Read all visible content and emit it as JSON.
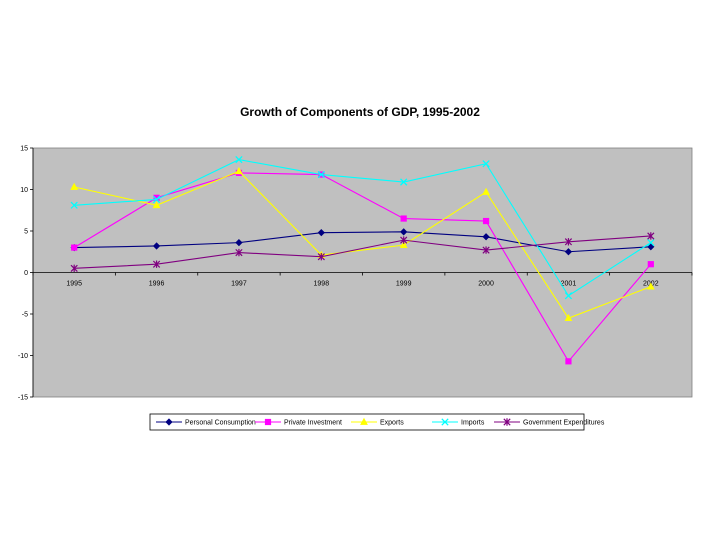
{
  "chart_data": {
    "type": "line",
    "title": "Growth of Components of GDP, 1995-2002",
    "xlabel": "",
    "ylabel": "",
    "categories": [
      "1995",
      "1996",
      "1997",
      "1998",
      "1999",
      "2000",
      "2001",
      "2002"
    ],
    "ylim": [
      -15,
      15
    ],
    "yticks": [
      15,
      10,
      5,
      0,
      -5,
      -10,
      -15
    ],
    "grid": false,
    "plot_background": "#c0c0c0",
    "legend_placement": "bottom",
    "series": [
      {
        "name": "Personal Consumption",
        "color": "#000080",
        "marker": "diamond",
        "values": [
          3.0,
          3.2,
          3.6,
          4.8,
          4.9,
          4.3,
          2.5,
          3.1
        ]
      },
      {
        "name": "Private Investment",
        "color": "#ff00ff",
        "marker": "square",
        "values": [
          3.0,
          9.0,
          12.0,
          11.8,
          6.5,
          6.2,
          -10.7,
          1.0
        ]
      },
      {
        "name": "Exports",
        "color": "#ffff00",
        "marker": "triangle",
        "values": [
          10.3,
          8.1,
          12.2,
          2.1,
          3.3,
          9.7,
          -5.5,
          -1.7
        ]
      },
      {
        "name": "Imports",
        "color": "#00ffff",
        "marker": "x",
        "values": [
          8.1,
          8.8,
          13.6,
          11.8,
          10.9,
          13.1,
          -2.8,
          3.6
        ]
      },
      {
        "name": "Government Expenditures",
        "color": "#800080",
        "marker": "star",
        "values": [
          0.5,
          1.0,
          2.4,
          1.9,
          3.9,
          2.7,
          3.7,
          4.4
        ]
      }
    ]
  }
}
